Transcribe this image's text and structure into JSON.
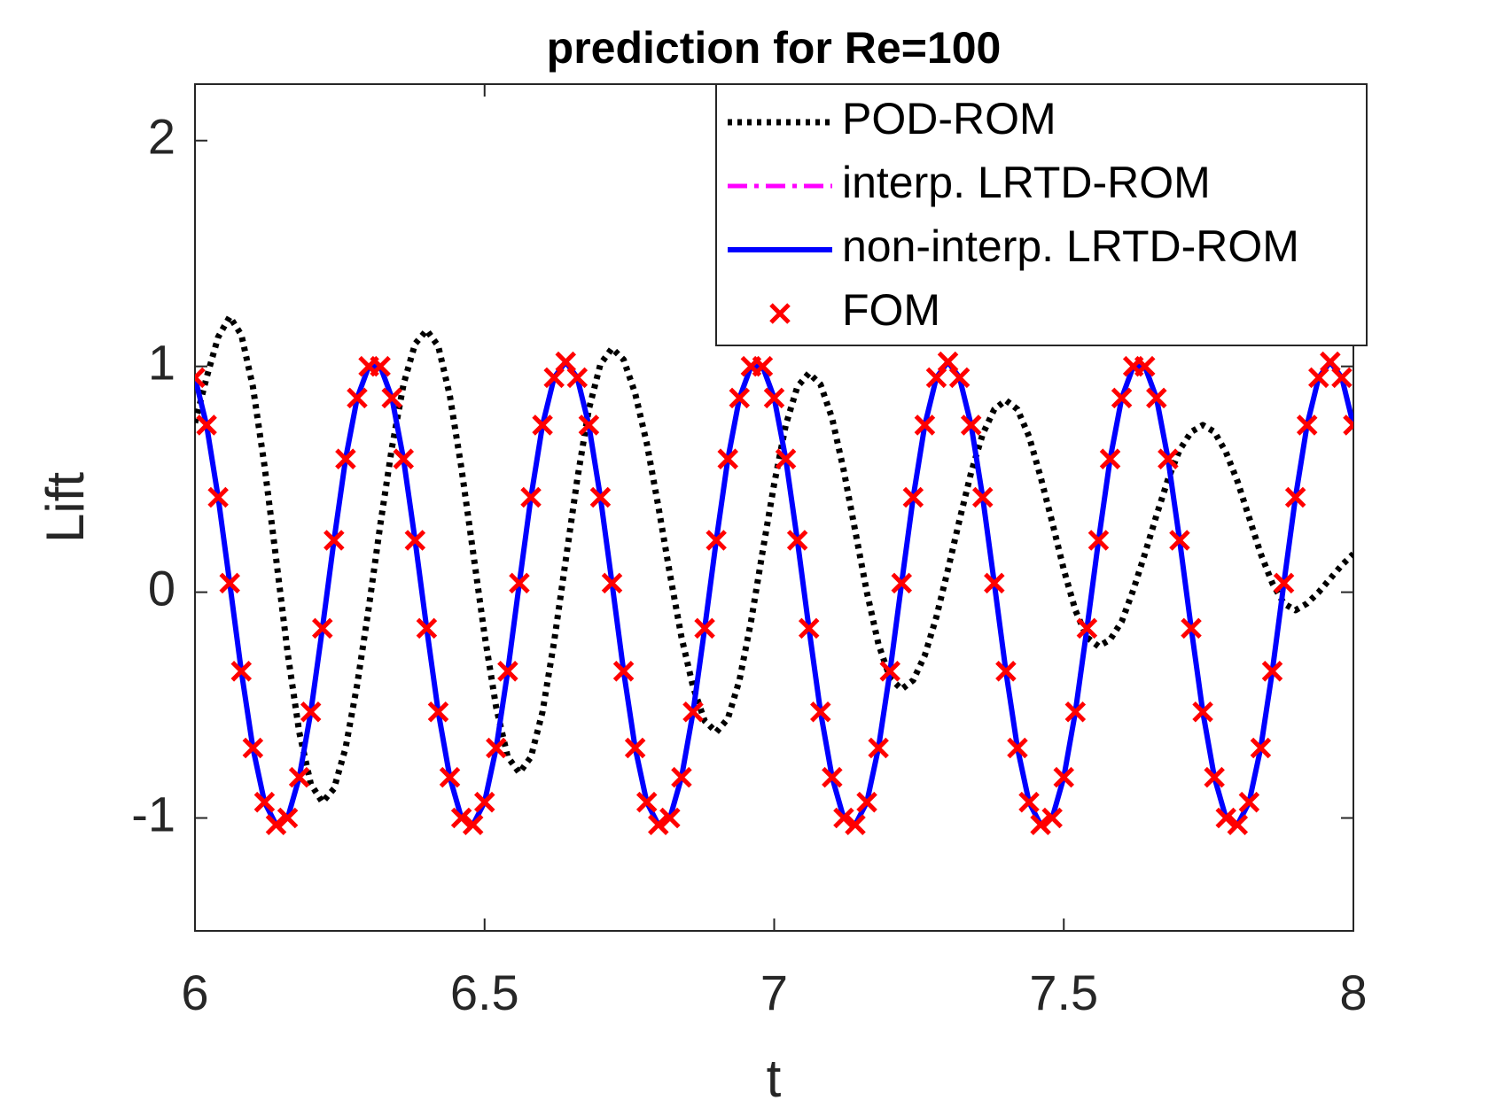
{
  "chart_data": {
    "type": "line",
    "title": "prediction for Re=100",
    "xlabel": "t",
    "ylabel": "Lift",
    "xlim": [
      6,
      8
    ],
    "ylim": [
      -1.5,
      2.25
    ],
    "xticks": [
      6,
      6.5,
      7,
      7.5,
      8
    ],
    "yticks": [
      -1,
      0,
      1,
      2
    ],
    "legend": "upper right",
    "x": [
      6.0,
      6.02,
      6.04,
      6.06,
      6.08,
      6.1,
      6.12,
      6.14,
      6.16,
      6.18,
      6.2,
      6.22,
      6.24,
      6.26,
      6.28,
      6.3,
      6.32,
      6.34,
      6.36,
      6.38,
      6.4,
      6.42,
      6.44,
      6.46,
      6.48,
      6.5,
      6.52,
      6.54,
      6.56,
      6.58,
      6.6,
      6.62,
      6.64,
      6.66,
      6.68,
      6.7,
      6.72,
      6.74,
      6.76,
      6.78,
      6.8,
      6.82,
      6.84,
      6.86,
      6.88,
      6.9,
      6.92,
      6.94,
      6.96,
      6.98,
      7.0,
      7.02,
      7.04,
      7.06,
      7.08,
      7.1,
      7.12,
      7.14,
      7.16,
      7.18,
      7.2,
      7.22,
      7.24,
      7.26,
      7.28,
      7.3,
      7.32,
      7.34,
      7.36,
      7.38,
      7.4,
      7.42,
      7.44,
      7.46,
      7.48,
      7.5,
      7.52,
      7.54,
      7.56,
      7.58,
      7.6,
      7.62,
      7.64,
      7.66,
      7.68,
      7.7,
      7.72,
      7.74,
      7.76,
      7.78,
      7.8,
      7.82,
      7.84,
      7.86,
      7.88,
      7.9,
      7.92,
      7.94,
      7.96,
      7.98,
      8.0
    ],
    "series": [
      {
        "name": "POD-ROM",
        "color": "#000000",
        "style": "dotted",
        "values": [
          0.75,
          0.95,
          1.13,
          1.22,
          1.14,
          0.91,
          0.56,
          0.15,
          -0.27,
          -0.62,
          -0.85,
          -0.93,
          -0.87,
          -0.69,
          -0.41,
          -0.07,
          0.3,
          0.64,
          0.92,
          1.1,
          1.16,
          1.09,
          0.87,
          0.55,
          0.18,
          -0.19,
          -0.51,
          -0.73,
          -0.8,
          -0.73,
          -0.53,
          -0.22,
          0.14,
          0.5,
          0.81,
          1.01,
          1.08,
          1.03,
          0.88,
          0.66,
          0.38,
          0.08,
          -0.2,
          -0.42,
          -0.57,
          -0.62,
          -0.56,
          -0.39,
          -0.13,
          0.18,
          0.48,
          0.74,
          0.91,
          0.97,
          0.92,
          0.77,
          0.54,
          0.27,
          0.0,
          -0.23,
          -0.38,
          -0.43,
          -0.39,
          -0.28,
          -0.11,
          0.1,
          0.32,
          0.53,
          0.7,
          0.81,
          0.85,
          0.81,
          0.69,
          0.51,
          0.31,
          0.1,
          -0.08,
          -0.2,
          -0.24,
          -0.21,
          -0.13,
          0.01,
          0.17,
          0.34,
          0.5,
          0.63,
          0.71,
          0.74,
          0.71,
          0.62,
          0.49,
          0.33,
          0.17,
          0.04,
          -0.05,
          -0.08,
          -0.05,
          0.0,
          0.06,
          0.12,
          0.17
        ]
      },
      {
        "name": "interp. LRTD-ROM",
        "color": "#ff00ff",
        "style": "dashdot",
        "values": [
          0.95,
          0.74,
          0.42,
          0.04,
          -0.35,
          -0.69,
          -0.93,
          -1.03,
          -1.0,
          -0.82,
          -0.53,
          -0.16,
          0.23,
          0.59,
          0.86,
          1.0,
          1.0,
          0.86,
          0.59,
          0.23,
          -0.16,
          -0.53,
          -0.82,
          -1.0,
          -1.03,
          -0.93,
          -0.69,
          -0.35,
          0.04,
          0.42,
          0.74,
          0.95,
          1.02,
          0.95,
          0.74,
          0.42,
          0.04,
          -0.35,
          -0.69,
          -0.93,
          -1.03,
          -1.0,
          -0.82,
          -0.53,
          -0.16,
          0.23,
          0.59,
          0.86,
          1.0,
          1.0,
          0.86,
          0.59,
          0.23,
          -0.16,
          -0.53,
          -0.82,
          -1.0,
          -1.03,
          -0.93,
          -0.69,
          -0.35,
          0.04,
          0.42,
          0.74,
          0.95,
          1.02,
          0.95,
          0.74,
          0.42,
          0.04,
          -0.35,
          -0.69,
          -0.93,
          -1.03,
          -1.0,
          -0.82,
          -0.53,
          -0.16,
          0.23,
          0.59,
          0.86,
          1.0,
          1.0,
          0.86,
          0.59,
          0.23,
          -0.16,
          -0.53,
          -0.82,
          -1.0,
          -1.03,
          -0.93,
          -0.69,
          -0.35,
          0.04,
          0.42,
          0.74,
          0.95,
          1.02,
          0.95,
          0.74
        ]
      },
      {
        "name": "non-interp. LRTD-ROM",
        "color": "#0000ff",
        "style": "solid",
        "values": [
          0.95,
          0.74,
          0.42,
          0.04,
          -0.35,
          -0.69,
          -0.93,
          -1.03,
          -1.0,
          -0.82,
          -0.53,
          -0.16,
          0.23,
          0.59,
          0.86,
          1.0,
          1.0,
          0.86,
          0.59,
          0.23,
          -0.16,
          -0.53,
          -0.82,
          -1.0,
          -1.03,
          -0.93,
          -0.69,
          -0.35,
          0.04,
          0.42,
          0.74,
          0.95,
          1.02,
          0.95,
          0.74,
          0.42,
          0.04,
          -0.35,
          -0.69,
          -0.93,
          -1.03,
          -1.0,
          -0.82,
          -0.53,
          -0.16,
          0.23,
          0.59,
          0.86,
          1.0,
          1.0,
          0.86,
          0.59,
          0.23,
          -0.16,
          -0.53,
          -0.82,
          -1.0,
          -1.03,
          -0.93,
          -0.69,
          -0.35,
          0.04,
          0.42,
          0.74,
          0.95,
          1.02,
          0.95,
          0.74,
          0.42,
          0.04,
          -0.35,
          -0.69,
          -0.93,
          -1.03,
          -1.0,
          -0.82,
          -0.53,
          -0.16,
          0.23,
          0.59,
          0.86,
          1.0,
          1.0,
          0.86,
          0.59,
          0.23,
          -0.16,
          -0.53,
          -0.82,
          -1.0,
          -1.03,
          -0.93,
          -0.69,
          -0.35,
          0.04,
          0.42,
          0.74,
          0.95,
          1.02,
          0.95,
          0.74
        ]
      },
      {
        "name": "FOM",
        "color": "#ff0000",
        "style": "marker",
        "values": [
          0.95,
          0.74,
          0.42,
          0.04,
          -0.35,
          -0.69,
          -0.93,
          -1.03,
          -1.0,
          -0.82,
          -0.53,
          -0.16,
          0.23,
          0.59,
          0.86,
          1.0,
          1.0,
          0.86,
          0.59,
          0.23,
          -0.16,
          -0.53,
          -0.82,
          -1.0,
          -1.03,
          -0.93,
          -0.69,
          -0.35,
          0.04,
          0.42,
          0.74,
          0.95,
          1.02,
          0.95,
          0.74,
          0.42,
          0.04,
          -0.35,
          -0.69,
          -0.93,
          -1.03,
          -1.0,
          -0.82,
          -0.53,
          -0.16,
          0.23,
          0.59,
          0.86,
          1.0,
          1.0,
          0.86,
          0.59,
          0.23,
          -0.16,
          -0.53,
          -0.82,
          -1.0,
          -1.03,
          -0.93,
          -0.69,
          -0.35,
          0.04,
          0.42,
          0.74,
          0.95,
          1.02,
          0.95,
          0.74,
          0.42,
          0.04,
          -0.35,
          -0.69,
          -0.93,
          -1.03,
          -1.0,
          -0.82,
          -0.53,
          -0.16,
          0.23,
          0.59,
          0.86,
          1.0,
          1.0,
          0.86,
          0.59,
          0.23,
          -0.16,
          -0.53,
          -0.82,
          -1.0,
          -1.03,
          -0.93,
          -0.69,
          -0.35,
          0.04,
          0.42,
          0.74,
          0.95,
          1.02,
          0.95,
          0.74
        ]
      }
    ]
  }
}
